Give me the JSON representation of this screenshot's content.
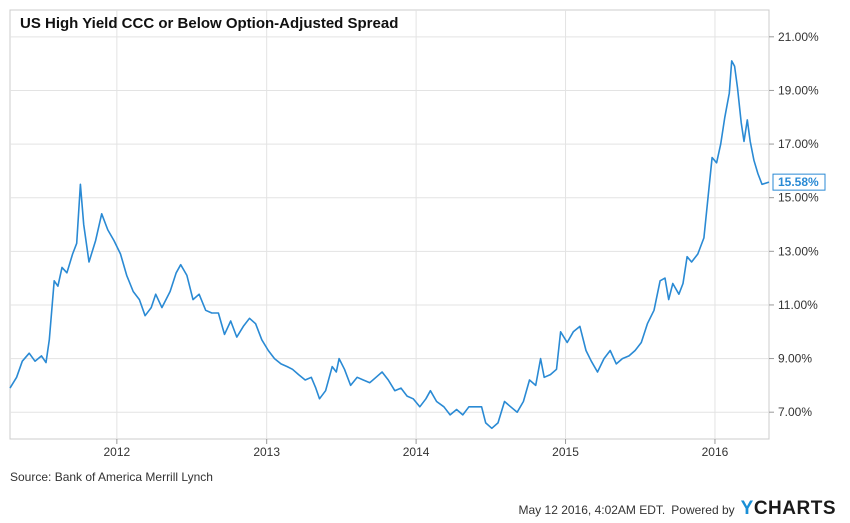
{
  "chart_data": {
    "type": "line",
    "title": "US High Yield CCC or Below Option-Adjusted Spread",
    "y_unit": "%",
    "ylim": [
      6.0,
      22.0
    ],
    "y_ticks": [
      "7.00%",
      "9.00%",
      "11.00%",
      "13.00%",
      "15.00%",
      "17.00%",
      "19.00%",
      "21.00%"
    ],
    "y_tick_values": [
      7,
      9,
      11,
      13,
      15,
      17,
      19,
      21
    ],
    "x_range": [
      "2011-04-15",
      "2016-05-12"
    ],
    "x_ticks": [
      "2012",
      "2013",
      "2014",
      "2015",
      "2016"
    ],
    "x_tick_dates": [
      "2012-01-01",
      "2013-01-01",
      "2014-01-01",
      "2015-01-01",
      "2016-01-01"
    ],
    "grid": true,
    "line_color": "#2a8ad4",
    "last_value_label": "15.58%",
    "series": [
      {
        "points": [
          [
            "2011-04-15",
            7.9
          ],
          [
            "2011-05-01",
            8.3
          ],
          [
            "2011-05-15",
            8.9
          ],
          [
            "2011-06-01",
            9.2
          ],
          [
            "2011-06-15",
            8.9
          ],
          [
            "2011-07-01",
            9.1
          ],
          [
            "2011-07-12",
            8.85
          ],
          [
            "2011-07-20",
            9.7
          ],
          [
            "2011-08-01",
            11.9
          ],
          [
            "2011-08-10",
            11.7
          ],
          [
            "2011-08-20",
            12.4
          ],
          [
            "2011-09-01",
            12.2
          ],
          [
            "2011-09-15",
            12.9
          ],
          [
            "2011-09-25",
            13.3
          ],
          [
            "2011-10-04",
            15.5
          ],
          [
            "2011-10-12",
            14.0
          ],
          [
            "2011-10-25",
            12.6
          ],
          [
            "2011-11-10",
            13.4
          ],
          [
            "2011-11-25",
            14.4
          ],
          [
            "2011-12-10",
            13.8
          ],
          [
            "2011-12-25",
            13.4
          ],
          [
            "2012-01-10",
            12.9
          ],
          [
            "2012-01-25",
            12.1
          ],
          [
            "2012-02-10",
            11.5
          ],
          [
            "2012-02-25",
            11.2
          ],
          [
            "2012-03-10",
            10.6
          ],
          [
            "2012-03-25",
            10.9
          ],
          [
            "2012-04-05",
            11.4
          ],
          [
            "2012-04-20",
            10.9
          ],
          [
            "2012-05-10",
            11.5
          ],
          [
            "2012-05-25",
            12.2
          ],
          [
            "2012-06-05",
            12.5
          ],
          [
            "2012-06-20",
            12.1
          ],
          [
            "2012-07-05",
            11.2
          ],
          [
            "2012-07-20",
            11.4
          ],
          [
            "2012-08-05",
            10.8
          ],
          [
            "2012-08-20",
            10.7
          ],
          [
            "2012-09-05",
            10.7
          ],
          [
            "2012-09-20",
            9.9
          ],
          [
            "2012-10-05",
            10.4
          ],
          [
            "2012-10-20",
            9.8
          ],
          [
            "2012-11-05",
            10.2
          ],
          [
            "2012-11-20",
            10.5
          ],
          [
            "2012-12-05",
            10.3
          ],
          [
            "2012-12-20",
            9.7
          ],
          [
            "2013-01-05",
            9.3
          ],
          [
            "2013-01-20",
            9.0
          ],
          [
            "2013-02-05",
            8.8
          ],
          [
            "2013-02-20",
            8.7
          ],
          [
            "2013-03-05",
            8.6
          ],
          [
            "2013-03-20",
            8.4
          ],
          [
            "2013-04-05",
            8.2
          ],
          [
            "2013-04-20",
            8.3
          ],
          [
            "2013-05-01",
            7.9
          ],
          [
            "2013-05-10",
            7.5
          ],
          [
            "2013-05-25",
            7.8
          ],
          [
            "2013-06-10",
            8.7
          ],
          [
            "2013-06-20",
            8.5
          ],
          [
            "2013-06-27",
            9.0
          ],
          [
            "2013-07-10",
            8.6
          ],
          [
            "2013-07-25",
            8.0
          ],
          [
            "2013-08-10",
            8.3
          ],
          [
            "2013-08-25",
            8.2
          ],
          [
            "2013-09-10",
            8.1
          ],
          [
            "2013-09-25",
            8.3
          ],
          [
            "2013-10-10",
            8.5
          ],
          [
            "2013-10-25",
            8.2
          ],
          [
            "2013-11-10",
            7.8
          ],
          [
            "2013-11-25",
            7.9
          ],
          [
            "2013-12-10",
            7.6
          ],
          [
            "2013-12-25",
            7.5
          ],
          [
            "2014-01-10",
            7.2
          ],
          [
            "2014-01-25",
            7.5
          ],
          [
            "2014-02-05",
            7.8
          ],
          [
            "2014-02-20",
            7.4
          ],
          [
            "2014-03-10",
            7.2
          ],
          [
            "2014-03-25",
            6.9
          ],
          [
            "2014-04-10",
            7.1
          ],
          [
            "2014-04-25",
            6.9
          ],
          [
            "2014-05-10",
            7.2
          ],
          [
            "2014-05-25",
            7.2
          ],
          [
            "2014-06-10",
            7.2
          ],
          [
            "2014-06-20",
            6.6
          ],
          [
            "2014-07-05",
            6.4
          ],
          [
            "2014-07-20",
            6.6
          ],
          [
            "2014-08-05",
            7.4
          ],
          [
            "2014-08-20",
            7.2
          ],
          [
            "2014-09-05",
            7.0
          ],
          [
            "2014-09-20",
            7.4
          ],
          [
            "2014-10-05",
            8.2
          ],
          [
            "2014-10-20",
            8.0
          ],
          [
            "2014-11-01",
            9.0
          ],
          [
            "2014-11-10",
            8.3
          ],
          [
            "2014-11-25",
            8.4
          ],
          [
            "2014-12-10",
            8.6
          ],
          [
            "2014-12-20",
            10.0
          ],
          [
            "2015-01-05",
            9.6
          ],
          [
            "2015-01-20",
            10.0
          ],
          [
            "2015-02-05",
            10.2
          ],
          [
            "2015-02-20",
            9.3
          ],
          [
            "2015-03-05",
            8.9
          ],
          [
            "2015-03-20",
            8.5
          ],
          [
            "2015-04-05",
            9.0
          ],
          [
            "2015-04-20",
            9.3
          ],
          [
            "2015-05-05",
            8.8
          ],
          [
            "2015-05-20",
            9.0
          ],
          [
            "2015-06-05",
            9.1
          ],
          [
            "2015-06-20",
            9.3
          ],
          [
            "2015-07-05",
            9.6
          ],
          [
            "2015-07-20",
            10.3
          ],
          [
            "2015-08-05",
            10.8
          ],
          [
            "2015-08-20",
            11.9
          ],
          [
            "2015-09-01",
            12.0
          ],
          [
            "2015-09-10",
            11.2
          ],
          [
            "2015-09-20",
            11.8
          ],
          [
            "2015-10-05",
            11.4
          ],
          [
            "2015-10-15",
            11.8
          ],
          [
            "2015-10-25",
            12.8
          ],
          [
            "2015-11-05",
            12.6
          ],
          [
            "2015-11-20",
            12.9
          ],
          [
            "2015-12-05",
            13.5
          ],
          [
            "2015-12-15",
            15.0
          ],
          [
            "2015-12-25",
            16.5
          ],
          [
            "2016-01-05",
            16.3
          ],
          [
            "2016-01-15",
            17.0
          ],
          [
            "2016-01-25",
            18.0
          ],
          [
            "2016-02-05",
            18.9
          ],
          [
            "2016-02-11",
            20.1
          ],
          [
            "2016-02-18",
            19.9
          ],
          [
            "2016-02-25",
            19.1
          ],
          [
            "2016-03-05",
            17.8
          ],
          [
            "2016-03-12",
            17.1
          ],
          [
            "2016-03-20",
            17.9
          ],
          [
            "2016-03-27",
            17.1
          ],
          [
            "2016-04-05",
            16.4
          ],
          [
            "2016-04-15",
            15.9
          ],
          [
            "2016-04-25",
            15.5
          ],
          [
            "2016-05-12",
            15.58
          ]
        ]
      }
    ]
  },
  "footer": {
    "source": "Source: Bank of America Merrill Lynch",
    "timestamp": "May 12 2016, 4:02AM EDT.",
    "powered_by": "Powered by",
    "brand_y": "Y",
    "brand_rest": "CHARTS"
  }
}
